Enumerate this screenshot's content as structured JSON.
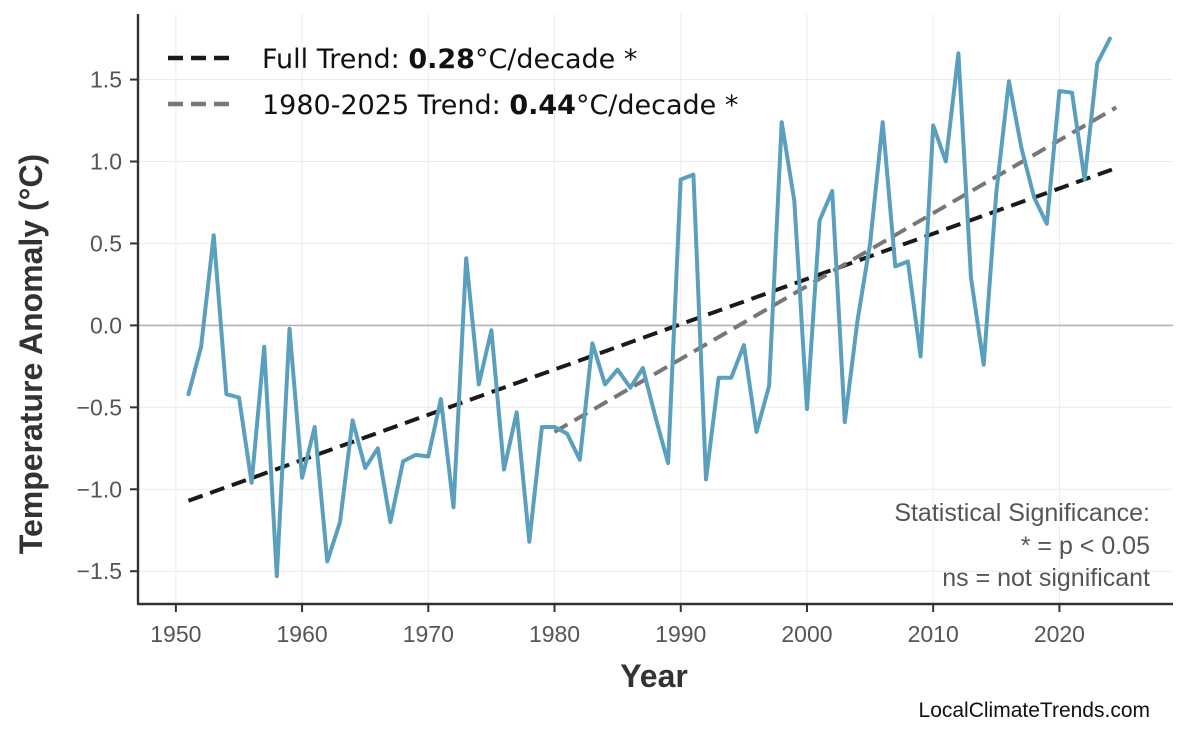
{
  "chart_data": {
    "type": "line",
    "xlabel": "Year",
    "ylabel": "Temperature Anomaly (°C)",
    "xlim": [
      1947,
      2029
    ],
    "ylim": [
      -1.7,
      1.9
    ],
    "x_ticks": [
      1950,
      1960,
      1970,
      1980,
      1990,
      2000,
      2010,
      2020
    ],
    "y_ticks": [
      1.5,
      1.0,
      0.5,
      0.0,
      -0.5,
      -1.0,
      -1.5
    ],
    "y_tick_labels": [
      "1.5",
      "1.0",
      "0.5",
      "0.0",
      "−0.5",
      "−1.0",
      "−1.5"
    ],
    "grid": true,
    "zero_line": true,
    "series": [
      {
        "color": "#5a9fbe",
        "x": [
          1951,
          1952,
          1953,
          1954,
          1955,
          1956,
          1957,
          1958,
          1959,
          1960,
          1961,
          1962,
          1963,
          1964,
          1965,
          1966,
          1967,
          1968,
          1969,
          1970,
          1971,
          1972,
          1973,
          1974,
          1975,
          1976,
          1977,
          1978,
          1979,
          1980,
          1981,
          1982,
          1983,
          1984,
          1985,
          1986,
          1987,
          1988,
          1989,
          1990,
          1991,
          1992,
          1993,
          1994,
          1995,
          1996,
          1997,
          1998,
          1999,
          2000,
          2001,
          2002,
          2003,
          2004,
          2005,
          2006,
          2007,
          2008,
          2009,
          2010,
          2011,
          2012,
          2013,
          2014,
          2015,
          2016,
          2017,
          2018,
          2019,
          2020,
          2021,
          2022,
          2023,
          2024
        ],
        "y": [
          -0.42,
          -0.13,
          0.55,
          -0.42,
          -0.44,
          -0.96,
          -0.13,
          -1.53,
          -0.02,
          -0.93,
          -0.62,
          -1.44,
          -1.2,
          -0.58,
          -0.87,
          -0.75,
          -1.2,
          -0.83,
          -0.79,
          -0.8,
          -0.45,
          -1.11,
          0.41,
          -0.36,
          -0.03,
          -0.88,
          -0.53,
          -1.32,
          -0.62,
          -0.62,
          -0.66,
          -0.82,
          -0.11,
          -0.36,
          -0.27,
          -0.38,
          -0.26,
          -0.56,
          -0.84,
          0.89,
          0.92,
          -0.94,
          -0.32,
          -0.32,
          -0.12,
          -0.65,
          -0.37,
          1.24,
          0.76,
          -0.51,
          0.64,
          0.82,
          -0.59,
          0.03,
          0.5,
          1.24,
          0.36,
          0.39,
          -0.19,
          1.22,
          1.0,
          1.66,
          0.29,
          -0.24,
          0.81,
          1.49,
          1.08,
          0.78,
          0.62,
          1.43,
          1.42,
          0.89,
          1.6,
          1.75
        ]
      }
    ],
    "trends": [
      {
        "label_prefix": "Full Trend: ",
        "value": "0.28",
        "label_suffix": "°C/decade *",
        "color": "#1a1a1a",
        "x": [
          1951,
          2024.5
        ],
        "y": [
          -1.07,
          0.96
        ]
      },
      {
        "label_prefix": "1980-2025 Trend: ",
        "value": "0.44",
        "label_suffix": "°C/decade *",
        "color": "#777777",
        "x": [
          1980,
          2024.5
        ],
        "y": [
          -0.65,
          1.33
        ]
      }
    ],
    "legend_position": "top-left",
    "annotation": {
      "line1": "Statistical Significance:",
      "line2": "* = p < 0.05",
      "line3": "ns = not significant"
    },
    "credit": "LocalClimateTrends.com"
  }
}
